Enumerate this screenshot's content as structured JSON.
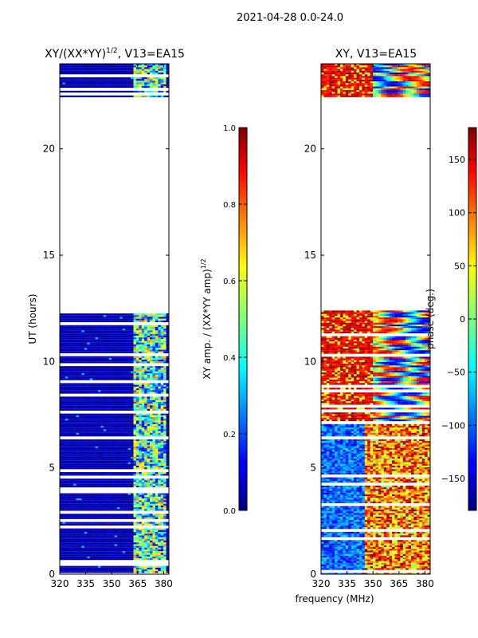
{
  "suptitle": "2021-04-28 0.0-24.0",
  "colors": {
    "band_deep": "#00007f",
    "band_mid": "#0000ff",
    "stripe": "#ffffff",
    "amp_peak": [
      "#00c8ff",
      "#7fff7f",
      "#ffff00"
    ],
    "phase": [
      "#ff0000",
      "#ffa500",
      "#ffff00",
      "#00ffff",
      "#0000ff",
      "#00007f"
    ]
  },
  "chart_data": [
    {
      "type": "heatmap",
      "title": "XY/(XX*YY)$^{1/2}$, V13=EA15",
      "title_main": "XY/(XX*YY)",
      "title_sup": "1/2",
      "title_rest": ", V13=EA15",
      "xlabel": "",
      "ylabel": "UT (hours)",
      "x_ticks": [
        "320",
        "335",
        "350",
        "365",
        "380"
      ],
      "x_tick_values": [
        320,
        335,
        350,
        365,
        380
      ],
      "y_ticks": [
        "0",
        "5",
        "10",
        "15",
        "20"
      ],
      "y_tick_values": [
        0,
        5,
        10,
        15,
        20
      ],
      "xlim": [
        320,
        383
      ],
      "ylim": [
        0,
        24
      ],
      "data_blocks": [
        [
          0,
          12.4
        ],
        [
          22.5,
          24
        ]
      ],
      "gap": [
        12.4,
        22.5
      ],
      "colorbar": {
        "label": "XY amp. / (XX*YY amp)$^{1/2}$",
        "label_main": "XY amp. / (XX*YY amp)",
        "label_sup": "1/2",
        "ticks": [
          "0.0",
          "0.2",
          "0.4",
          "0.6",
          "0.8",
          "1.0"
        ],
        "tick_values": [
          0.0,
          0.2,
          0.4,
          0.6,
          0.8,
          1.0
        ],
        "range": [
          0,
          1
        ]
      }
    },
    {
      "type": "heatmap",
      "title": "XY, V13=EA15",
      "xlabel": "frequency (MHz)",
      "ylabel": "",
      "x_ticks": [
        "320",
        "335",
        "350",
        "365",
        "380"
      ],
      "x_tick_values": [
        320,
        335,
        350,
        365,
        380
      ],
      "y_ticks": [
        "0",
        "5",
        "10",
        "15",
        "20"
      ],
      "y_tick_values": [
        0,
        5,
        10,
        15,
        20
      ],
      "xlim": [
        320,
        383
      ],
      "ylim": [
        0,
        24
      ],
      "data_blocks": [
        [
          0,
          12.4
        ],
        [
          22.5,
          24
        ]
      ],
      "gap": [
        12.4,
        22.5
      ],
      "colorbar": {
        "label": "phase (deg.)",
        "ticks": [
          "−150",
          "−100",
          "−50",
          "0",
          "50",
          "100",
          "150"
        ],
        "tick_values": [
          -150,
          -100,
          -50,
          0,
          50,
          100,
          150
        ],
        "range": [
          -180,
          180
        ]
      }
    }
  ]
}
